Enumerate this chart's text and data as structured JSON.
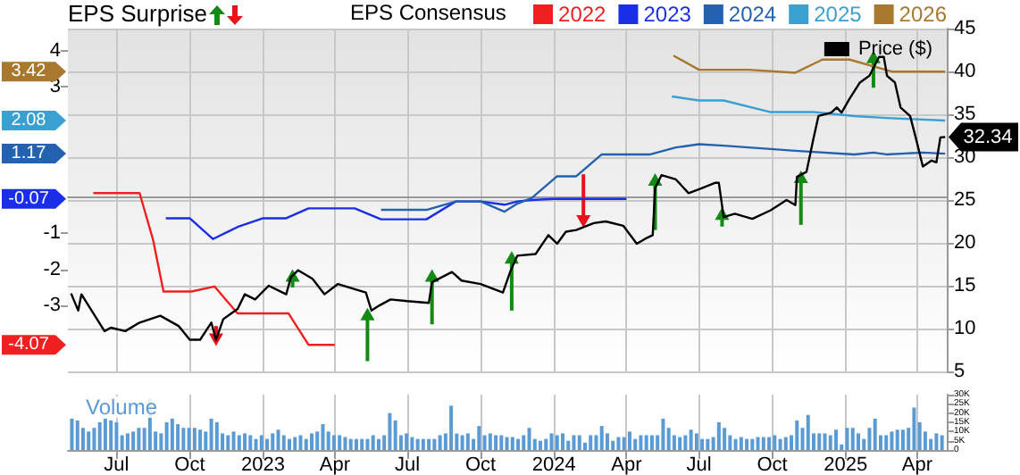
{
  "chart_data": {
    "type": "line",
    "title": "EPS Surprise",
    "legend_title": "EPS Consensus",
    "grid": true,
    "legend": "top right",
    "xlim": [
      "2022-05-01",
      "2025-05-08"
    ],
    "xticks": [
      {
        "value": "2022-07",
        "label": "Jul"
      },
      {
        "value": "2022-10",
        "label": "Oct"
      },
      {
        "value": "2023-01",
        "label": "2023"
      },
      {
        "value": "2023-04",
        "label": "Apr"
      },
      {
        "value": "2023-07",
        "label": "Jul"
      },
      {
        "value": "2023-10",
        "label": "Oct"
      },
      {
        "value": "2024-01",
        "label": "2024"
      },
      {
        "value": "2024-04",
        "label": "Apr"
      },
      {
        "value": "2024-07",
        "label": "Jul"
      },
      {
        "value": "2024-10",
        "label": "Oct"
      },
      {
        "value": "2025-01",
        "label": "2025"
      },
      {
        "value": "2025-04",
        "label": "Apr"
      }
    ],
    "ylim": [
      -4.8,
      4.6
    ],
    "yticks": [
      -3,
      -2,
      -1,
      3,
      4
    ],
    "annotations": [
      "3.42",
      "2.08",
      "1.17",
      "-0.07",
      "-4.07"
    ],
    "y2lim": [
      5,
      45
    ],
    "y2ticks": [
      5,
      10,
      15,
      20,
      25,
      30,
      35,
      40,
      45
    ],
    "y3lim": [
      0,
      30000
    ],
    "y3ticks": [
      {
        "value": 0,
        "label": "0"
      },
      {
        "value": 5000,
        "label": "5K"
      },
      {
        "value": 10000,
        "label": "10K"
      },
      {
        "value": 15000,
        "label": "15K"
      },
      {
        "value": 20000,
        "label": "20K"
      },
      {
        "value": 25000,
        "label": "25K"
      },
      {
        "value": 30000,
        "label": "30K"
      }
    ],
    "series": [
      {
        "name": "2022",
        "color": "#f02020",
        "axis": "y",
        "x": [
          "2022-06-02",
          "2022-07-30",
          "2022-08-16",
          "2022-08-29",
          "2022-10-03",
          "2022-11-01",
          "2022-11-30",
          "2023-02-02",
          "2023-02-27",
          "2023-04-01"
        ],
        "values": [
          0.09,
          0.09,
          -1.2,
          -2.61,
          -2.61,
          -2.47,
          -3.21,
          -3.21,
          -4.07,
          -4.07
        ]
      },
      {
        "name": "2023",
        "color": "#1a2ee8",
        "axis": "y",
        "x": [
          "2022-09-01",
          "2022-10-01",
          "2022-10-30",
          "2022-11-30",
          "2023-01-01",
          "2023-01-30",
          "2023-02-27",
          "2023-04-26",
          "2023-05-29",
          "2023-07-25",
          "2023-08-31",
          "2023-10-01",
          "2023-10-31",
          "2023-11-16",
          "2023-12-04",
          "2024-01-01",
          "2024-04-01"
        ],
        "values": [
          -0.6,
          -0.6,
          -1.17,
          -0.84,
          -0.6,
          -0.6,
          -0.33,
          -0.33,
          -0.63,
          -0.63,
          -0.14,
          -0.14,
          -0.23,
          -0.14,
          -0.1,
          -0.07,
          -0.07
        ]
      },
      {
        "name": "2024",
        "color": "#2462b0",
        "axis": "y",
        "x": [
          "2023-05-29",
          "2023-07-25",
          "2023-08-31",
          "2023-10-01",
          "2023-10-31",
          "2023-11-16",
          "2023-12-04",
          "2024-01-05",
          "2024-01-29",
          "2024-03-01",
          "2024-05-01",
          "2024-06-02",
          "2024-07-01",
          "2024-08-01",
          "2024-10-30",
          "2025-01-12",
          "2025-02-05",
          "2025-02-21",
          "2025-04-08",
          "2025-05-06"
        ],
        "values": [
          -0.37,
          -0.37,
          -0.14,
          -0.14,
          -0.42,
          -0.2,
          -0.05,
          0.55,
          0.55,
          1.15,
          1.15,
          1.34,
          1.43,
          1.39,
          1.25,
          1.15,
          1.2,
          1.15,
          1.2,
          1.17
        ]
      },
      {
        "name": "2025",
        "color": "#3aa0d2",
        "axis": "y",
        "x": [
          "2024-05-28",
          "2024-07-01",
          "2024-08-01",
          "2024-09-29",
          "2024-11-22",
          "2025-01-12",
          "2025-02-21",
          "2025-05-06"
        ],
        "values": [
          2.74,
          2.63,
          2.63,
          2.31,
          2.31,
          2.2,
          2.15,
          2.08
        ]
      },
      {
        "name": "2026",
        "color": "#a8782e",
        "axis": "y",
        "x": [
          "2024-05-30",
          "2024-07-01",
          "2024-09-01",
          "2024-10-30",
          "2024-12-03",
          "2025-01-06",
          "2025-02-12",
          "2025-02-28",
          "2025-05-06"
        ],
        "values": [
          3.86,
          3.47,
          3.47,
          3.39,
          3.75,
          3.75,
          3.52,
          3.42,
          3.42
        ]
      },
      {
        "name": "Price ($)",
        "color": "#000000",
        "axis": "y2",
        "x": [
          "2022-05-05",
          "2022-05-14",
          "2022-05-18",
          "2022-06-16",
          "2022-06-24",
          "2022-07-12",
          "2022-07-30",
          "2022-08-25",
          "2022-09-17",
          "2022-10-01",
          "2022-10-14",
          "2022-10-28",
          "2022-11-03",
          "2022-11-12",
          "2022-11-30",
          "2022-12-09",
          "2022-12-22",
          "2023-01-08",
          "2023-01-30",
          "2023-02-05",
          "2023-02-14",
          "2023-03-04",
          "2023-03-19",
          "2023-04-05",
          "2023-04-26",
          "2023-05-10",
          "2023-05-17",
          "2023-05-27",
          "2023-06-10",
          "2023-07-01",
          "2023-07-28",
          "2023-08-01",
          "2023-08-26",
          "2023-09-07",
          "2023-10-01",
          "2023-10-29",
          "2023-11-07",
          "2023-11-16",
          "2023-12-09",
          "2023-12-25",
          "2024-01-05",
          "2024-01-16",
          "2024-01-29",
          "2024-02-20",
          "2024-03-06",
          "2024-03-28",
          "2024-04-14",
          "2024-04-25",
          "2024-05-04",
          "2024-05-07",
          "2024-05-15",
          "2024-06-02",
          "2024-06-18",
          "2024-07-05",
          "2024-07-21",
          "2024-07-26",
          "2024-08-01",
          "2024-08-15",
          "2024-09-06",
          "2024-09-29",
          "2024-10-19",
          "2024-10-30",
          "2024-11-01",
          "2024-11-13",
          "2024-11-22",
          "2024-11-28",
          "2024-12-14",
          "2024-12-21",
          "2024-12-27",
          "2025-01-06",
          "2025-01-19",
          "2025-01-31",
          "2025-02-12",
          "2025-02-18",
          "2025-02-22",
          "2025-03-04",
          "2025-03-11",
          "2025-03-23",
          "2025-03-30",
          "2025-04-08",
          "2025-04-19",
          "2025-04-25",
          "2025-04-30",
          "2025-05-06"
        ],
        "values": [
          14.1,
          12.1,
          14.0,
          9.7,
          10.1,
          9.7,
          10.7,
          11.5,
          10.3,
          8.7,
          8.7,
          10.7,
          8.7,
          11.1,
          12.3,
          14.0,
          13.4,
          15.0,
          14.0,
          16.0,
          16.8,
          15.8,
          14.0,
          15.2,
          14.6,
          14.2,
          12.1,
          12.7,
          13.4,
          13.2,
          13.0,
          15.4,
          16.6,
          15.6,
          15.2,
          14.2,
          16.6,
          18.5,
          18.7,
          20.9,
          19.9,
          21.3,
          21.5,
          22.3,
          22.5,
          22.0,
          19.9,
          20.5,
          20.9,
          26.4,
          27.9,
          27.4,
          25.8,
          26.4,
          27.0,
          27.0,
          23.0,
          23.4,
          22.8,
          23.8,
          25.0,
          24.4,
          27.7,
          28.3,
          32.3,
          34.8,
          35.2,
          35.8,
          35.2,
          36.8,
          38.7,
          39.5,
          41.7,
          41.7,
          39.5,
          38.7,
          35.8,
          34.8,
          32.3,
          28.9,
          29.6,
          29.4,
          32.3,
          32.34
        ],
        "value_labels": [
          null,
          null,
          null,
          null,
          null,
          null,
          null,
          null,
          null,
          null,
          null,
          null,
          null,
          null,
          null,
          null,
          null,
          null,
          null,
          null,
          null,
          null,
          null,
          null,
          null,
          null,
          null,
          null,
          null,
          null,
          null,
          null,
          null,
          null,
          null,
          null,
          null,
          null,
          null,
          null,
          null,
          null,
          null,
          null,
          null,
          null,
          null,
          null,
          null,
          null,
          null,
          null,
          null,
          null,
          null,
          null,
          null,
          null,
          null,
          null,
          null,
          null,
          null,
          null,
          null,
          null,
          null,
          null,
          null,
          null,
          null,
          null,
          null,
          null,
          null,
          null,
          null,
          null,
          null,
          null,
          null,
          null,
          null,
          "32.34"
        ]
      },
      {
        "type": "scatter",
        "marker": "triangle",
        "axis": "y2",
        "x": [
          "2022-11-03",
          "2023-02-07",
          "2023-05-12",
          "2023-08-01",
          "2023-11-09",
          "2024-02-07",
          "2024-05-07",
          "2024-07-30",
          "2024-11-06",
          "2025-02-05"
        ],
        "values": [
          8.7,
          16.2,
          11.7,
          16.2,
          18.3,
          22.5,
          27.4,
          23.4,
          27.7,
          41.7
        ],
        "errors": [
          [
            8.7,
            10.3
          ],
          [
            14.8,
            16.2
          ],
          [
            6.2,
            11.7
          ],
          [
            10.5,
            16.2
          ],
          [
            12.1,
            18.3
          ],
          [
            22.5,
            28.0
          ],
          [
            21.5,
            27.4
          ],
          [
            21.9,
            23.4
          ],
          [
            22.1,
            27.7
          ],
          [
            38.1,
            41.7
          ]
        ],
        "colors": [
          "#e8121a",
          "#138a13",
          "#138a13",
          "#138a13",
          "#138a13",
          "#e8121a",
          "#138a13",
          "#138a13",
          "#138a13",
          "#138a13"
        ]
      },
      {
        "name": "Volume",
        "type": "bar",
        "color": "#5b9bd5",
        "axis": "y3",
        "x": [
          "2022-05-06",
          "2022-05-13",
          "2022-05-20",
          "2022-05-27",
          "2022-06-03",
          "2022-06-10",
          "2022-06-17",
          "2022-06-24",
          "2022-07-01",
          "2022-07-08",
          "2022-07-15",
          "2022-07-22",
          "2022-07-29",
          "2022-08-05",
          "2022-08-12",
          "2022-08-19",
          "2022-08-26",
          "2022-09-02",
          "2022-09-09",
          "2022-09-16",
          "2022-09-23",
          "2022-09-30",
          "2022-10-07",
          "2022-10-14",
          "2022-10-21",
          "2022-10-28",
          "2022-11-04",
          "2022-11-11",
          "2022-11-18",
          "2022-11-25",
          "2022-12-02",
          "2022-12-09",
          "2022-12-16",
          "2022-12-23",
          "2022-12-30",
          "2023-01-06",
          "2023-01-13",
          "2023-01-20",
          "2023-01-27",
          "2023-02-03",
          "2023-02-10",
          "2023-02-17",
          "2023-02-24",
          "2023-03-03",
          "2023-03-10",
          "2023-03-17",
          "2023-03-24",
          "2023-03-31",
          "2023-04-07",
          "2023-04-14",
          "2023-04-21",
          "2023-04-28",
          "2023-05-05",
          "2023-05-12",
          "2023-05-19",
          "2023-05-26",
          "2023-06-02",
          "2023-06-09",
          "2023-06-16",
          "2023-06-23",
          "2023-06-30",
          "2023-07-07",
          "2023-07-14",
          "2023-07-21",
          "2023-07-28",
          "2023-08-04",
          "2023-08-11",
          "2023-08-18",
          "2023-08-25",
          "2023-09-01",
          "2023-09-08",
          "2023-09-15",
          "2023-09-22",
          "2023-09-29",
          "2023-10-06",
          "2023-10-13",
          "2023-10-20",
          "2023-10-27",
          "2023-11-03",
          "2023-11-10",
          "2023-11-17",
          "2023-11-24",
          "2023-12-01",
          "2023-12-08",
          "2023-12-15",
          "2023-12-22",
          "2023-12-29",
          "2024-01-05",
          "2024-01-12",
          "2024-01-19",
          "2024-01-26",
          "2024-02-02",
          "2024-02-09",
          "2024-02-16",
          "2024-02-23",
          "2024-03-01",
          "2024-03-08",
          "2024-03-15",
          "2024-03-22",
          "2024-03-29",
          "2024-04-05",
          "2024-04-12",
          "2024-04-19",
          "2024-04-26",
          "2024-05-03",
          "2024-05-10",
          "2024-05-17",
          "2024-05-24",
          "2024-05-31",
          "2024-06-07",
          "2024-06-14",
          "2024-06-21",
          "2024-06-28",
          "2024-07-05",
          "2024-07-12",
          "2024-07-19",
          "2024-07-26",
          "2024-08-02",
          "2024-08-09",
          "2024-08-16",
          "2024-08-23",
          "2024-08-30",
          "2024-09-06",
          "2024-09-13",
          "2024-09-20",
          "2024-09-27",
          "2024-10-04",
          "2024-10-11",
          "2024-10-18",
          "2024-10-25",
          "2024-11-01",
          "2024-11-08",
          "2024-11-15",
          "2024-11-22",
          "2024-11-29",
          "2024-12-06",
          "2024-12-13",
          "2024-12-20",
          "2024-12-27",
          "2025-01-03",
          "2025-01-10",
          "2025-01-17",
          "2025-01-24",
          "2025-01-31",
          "2025-02-07",
          "2025-02-14",
          "2025-02-21",
          "2025-02-28",
          "2025-03-07",
          "2025-03-14",
          "2025-03-21",
          "2025-03-28",
          "2025-04-04",
          "2025-04-11",
          "2025-04-18",
          "2025-04-25",
          "2025-05-02"
        ],
        "values": [
          17000,
          16000,
          12000,
          10000,
          12000,
          15000,
          17000,
          16000,
          15000,
          8000,
          9000,
          10000,
          12000,
          12000,
          28000,
          10000,
          9000,
          15000,
          17000,
          14000,
          12000,
          12000,
          12000,
          11000,
          10000,
          17000,
          15000,
          9000,
          8000,
          10000,
          8000,
          9000,
          8000,
          6000,
          8000,
          6000,
          9000,
          11000,
          8000,
          6000,
          7000,
          8000,
          6000,
          9000,
          10000,
          14000,
          10000,
          8000,
          8000,
          7000,
          6000,
          6000,
          6000,
          6000,
          8000,
          6000,
          8000,
          20000,
          16000,
          8000,
          9000,
          7000,
          6000,
          6000,
          6000,
          6000,
          8000,
          9000,
          24000,
          9000,
          8000,
          9000,
          6000,
          13000,
          8000,
          9000,
          8000,
          8000,
          7000,
          7000,
          6000,
          8000,
          12000,
          6000,
          5000,
          6000,
          9000,
          8000,
          9000,
          5000,
          8000,
          8000,
          4000,
          8000,
          8000,
          13000,
          9000,
          5000,
          7000,
          7000,
          10000,
          6000,
          8000,
          8000,
          8000,
          8000,
          17000,
          12000,
          8000,
          7000,
          8000,
          11000,
          9000,
          6000,
          6000,
          7000,
          15000,
          12000,
          8000,
          6000,
          7000,
          6000,
          6000,
          7000,
          7000,
          7000,
          8000,
          6000,
          7000,
          8000,
          16000,
          12000,
          19000,
          9000,
          9000,
          9000,
          8000,
          11000,
          3000,
          12000,
          12000,
          9000,
          6000,
          12000,
          17000,
          8000,
          8000,
          10000,
          11000,
          11000,
          12000,
          23000,
          15000,
          10000,
          6000,
          9000,
          8000
        ]
      }
    ]
  }
}
